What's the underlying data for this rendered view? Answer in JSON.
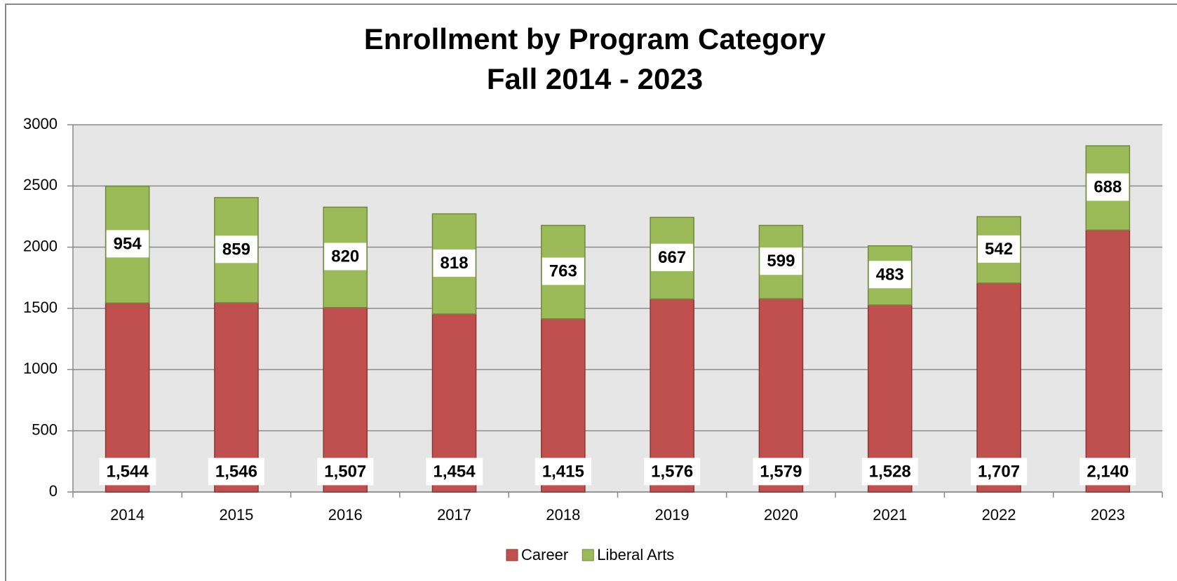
{
  "chart_data": {
    "type": "stacked_bar",
    "title": "Enrollment by Program Category",
    "subtitle": "Fall 2014 - 2023",
    "categories": [
      "2014",
      "2015",
      "2016",
      "2017",
      "2018",
      "2019",
      "2020",
      "2021",
      "2022",
      "2023"
    ],
    "series": [
      {
        "name": "Career",
        "color": "#c0504d",
        "values": [
          1544,
          1546,
          1507,
          1454,
          1415,
          1576,
          1579,
          1528,
          1707,
          2140
        ],
        "value_labels": [
          "1,544",
          "1,546",
          "1,507",
          "1,454",
          "1,415",
          "1,576",
          "1,579",
          "1,528",
          "1,707",
          "2,140"
        ]
      },
      {
        "name": "Liberal Arts",
        "color": "#9bbb59",
        "values": [
          954,
          859,
          820,
          818,
          763,
          667,
          599,
          483,
          542,
          688
        ]
      }
    ],
    "ylim": [
      0,
      3000
    ],
    "yticks": [
      0,
      500,
      1000,
      1500,
      2000,
      2500,
      3000
    ],
    "grid": true,
    "legend": "bottom"
  }
}
